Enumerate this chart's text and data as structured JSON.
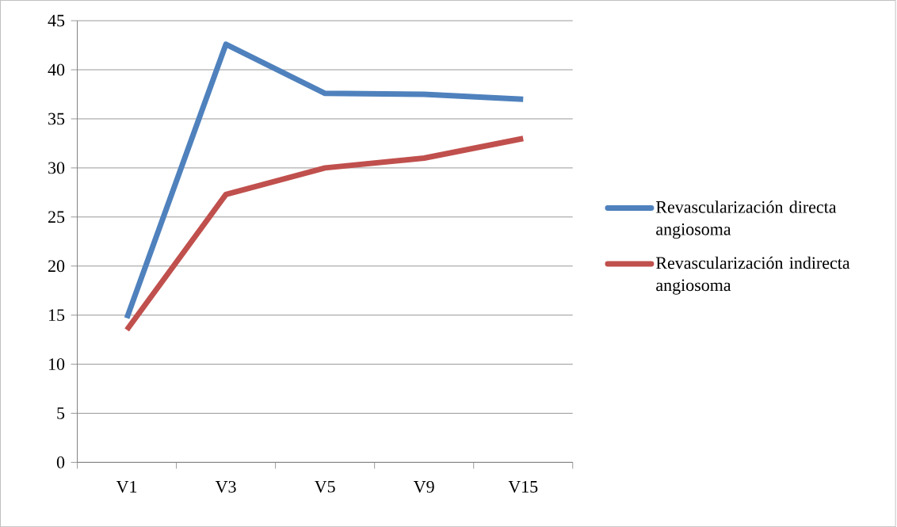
{
  "chart_data": {
    "type": "line",
    "categories": [
      "V1",
      "V3",
      "V5",
      "V9",
      "V15"
    ],
    "series": [
      {
        "name": "Revascularización directa angiosoma",
        "color": "#4f81bd",
        "values": [
          14.7,
          42.6,
          37.6,
          37.5,
          37.0
        ]
      },
      {
        "name": "Revascularización indirecta angiosoma",
        "color": "#c0504d",
        "values": [
          13.5,
          27.3,
          30.0,
          31.0,
          33.0
        ]
      }
    ],
    "ylim": [
      0,
      45
    ],
    "yticks": [
      0,
      5,
      10,
      15,
      20,
      25,
      30,
      35,
      40,
      45
    ],
    "grid": "y",
    "legend": "right",
    "marker": "none",
    "line_style": "solid"
  }
}
